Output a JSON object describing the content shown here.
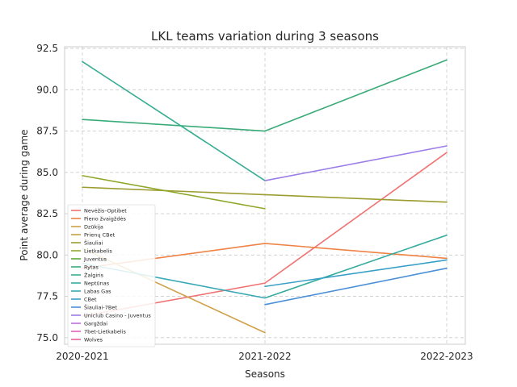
{
  "chart_data": {
    "type": "line",
    "title": "LKL teams variation during 3 seasons",
    "xlabel": "Seasons",
    "ylabel": "Point average during game",
    "categories": [
      "2020-2021",
      "2021-2022",
      "2022-2023"
    ],
    "ylim": [
      74.6,
      92.6
    ],
    "yticks": [
      75.0,
      77.5,
      80.0,
      82.5,
      85.0,
      87.5,
      90.0,
      92.5
    ],
    "ytick_labels": [
      "75.0",
      "77.5",
      "80.0",
      "82.5",
      "85.0",
      "87.5",
      "90.0",
      "92.5"
    ],
    "grid": true,
    "legend_position": "lower-left",
    "series": [
      {
        "name": "Nevėžis–Optibet",
        "color": "#f07272",
        "values": [
          76.3,
          78.3,
          86.2
        ]
      },
      {
        "name": "Pieno žvaigždės",
        "color": "#ef8245",
        "values": [
          79.2,
          80.7,
          79.8
        ]
      },
      {
        "name": "Dzūkija",
        "color": "#d1a048",
        "values": [
          80.4,
          75.3,
          null
        ]
      },
      {
        "name": "Prienų CBet",
        "color": "#c8a040",
        "values": [
          null,
          null,
          null
        ]
      },
      {
        "name": "Šiauliai",
        "color": "#9c9c30",
        "values": [
          84.1,
          null,
          83.2
        ]
      },
      {
        "name": "Lietkabelis",
        "color": "#8fa82c",
        "values": [
          84.8,
          82.8,
          null
        ]
      },
      {
        "name": "Juventus",
        "color": "#5aaa3a",
        "values": [
          null,
          null,
          null
        ]
      },
      {
        "name": "Rytas",
        "color": "#3aab78",
        "values": [
          88.2,
          87.5,
          91.8
        ]
      },
      {
        "name": "Žalgiris",
        "color": "#36ad92",
        "values": [
          91.7,
          84.5,
          null
        ]
      },
      {
        "name": "Neptūnas",
        "color": "#35ab9e",
        "values": [
          null,
          77.4,
          81.2
        ]
      },
      {
        "name": "Labas Gas",
        "color": "#38a9b4",
        "values": [
          79.5,
          77.4,
          null
        ]
      },
      {
        "name": "CBet",
        "color": "#3aa0c8",
        "values": [
          null,
          78.1,
          79.7
        ]
      },
      {
        "name": "Šiauliai-7Bet",
        "color": "#4a90d8",
        "values": [
          null,
          77.0,
          79.2
        ]
      },
      {
        "name": "Uniclub Casino - Juventus",
        "color": "#9b7ee8",
        "values": [
          null,
          84.5,
          86.6
        ]
      },
      {
        "name": "Gargždai",
        "color": "#c070e0",
        "values": [
          null,
          null,
          null
        ]
      },
      {
        "name": "7bet-Lietkabelis",
        "color": "#e060c0",
        "values": [
          null,
          null,
          null
        ]
      },
      {
        "name": "Wolves",
        "color": "#e8609a",
        "values": [
          null,
          null,
          null
        ]
      }
    ]
  }
}
